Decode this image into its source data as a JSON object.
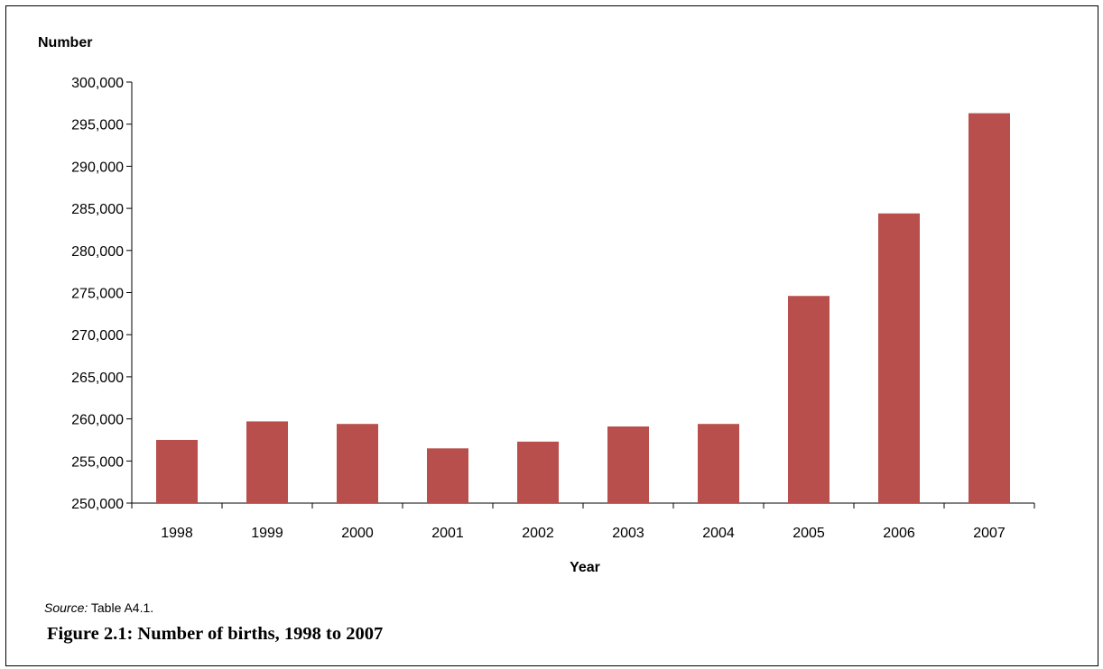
{
  "chart_data": {
    "type": "bar",
    "ylabel": "Number",
    "xlabel": "Year",
    "categories": [
      "1998",
      "1999",
      "2000",
      "2001",
      "2002",
      "2003",
      "2004",
      "2005",
      "2006",
      "2007"
    ],
    "values": [
      257500,
      259700,
      259400,
      256500,
      257300,
      259100,
      259400,
      274600,
      284400,
      296300
    ],
    "ylim": [
      250000,
      300000
    ],
    "yticks": [
      250000,
      255000,
      260000,
      265000,
      270000,
      275000,
      280000,
      285000,
      290000,
      295000,
      300000
    ],
    "ytick_labels": [
      "250,000",
      "255,000",
      "260,000",
      "265,000",
      "270,000",
      "275,000",
      "280,000",
      "285,000",
      "290,000",
      "295,000",
      "300,000"
    ],
    "bar_color": "#b94f4c",
    "grid": false,
    "legend": "none"
  },
  "source": {
    "label": "Source:",
    "text": " Table A4.1."
  },
  "caption": "Figure 2.1: Number of births, 1998 to 2007"
}
